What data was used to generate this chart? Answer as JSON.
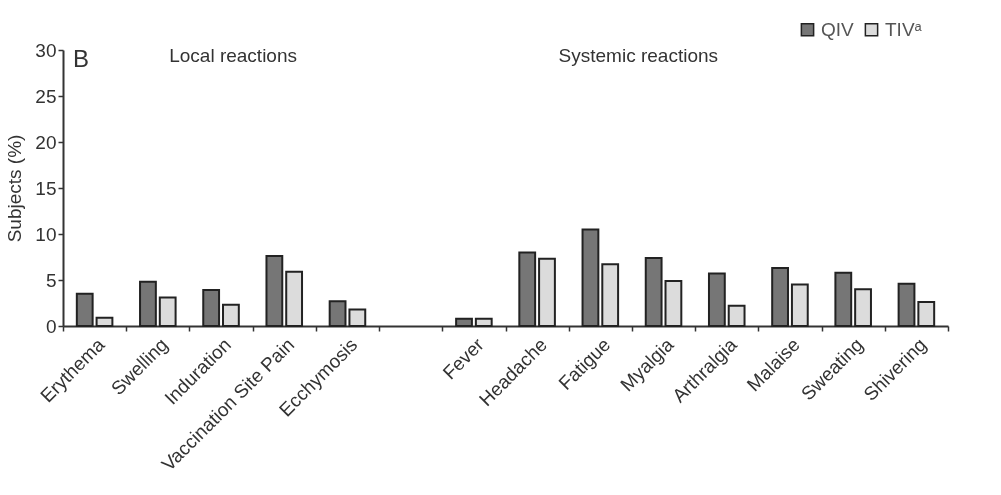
{
  "chart_data": {
    "type": "bar",
    "ylabel": "Subjects (%)",
    "categories": [
      "Erythema",
      "Swelling",
      "Induration",
      "Vaccination Site Pain",
      "Ecchymosis",
      null,
      "Fever",
      "Headache",
      "Fatigue",
      "Myalgia",
      "Arthralgia",
      "Malaise",
      "Sweating",
      "Shivering"
    ],
    "series": [
      {
        "name": "QIV",
        "color": "#767676",
        "values": [
          3.5,
          4.8,
          3.9,
          7.6,
          2.7,
          null,
          0.8,
          8.0,
          10.5,
          7.4,
          5.7,
          6.3,
          5.8,
          4.6
        ]
      },
      {
        "name": "TIVᵃ",
        "color": "#dcdcdc",
        "values": [
          0.9,
          3.1,
          2.3,
          5.9,
          1.8,
          null,
          0.8,
          7.3,
          6.7,
          4.9,
          2.2,
          4.5,
          4.0,
          2.6
        ]
      }
    ],
    "ylim": [
      0,
      30
    ],
    "yticks": [
      0,
      5,
      10,
      15,
      20,
      25,
      30
    ],
    "annotations": [
      "B",
      "Local reactions",
      "Systemic reactions"
    ],
    "legend": "top right",
    "grid": false
  }
}
